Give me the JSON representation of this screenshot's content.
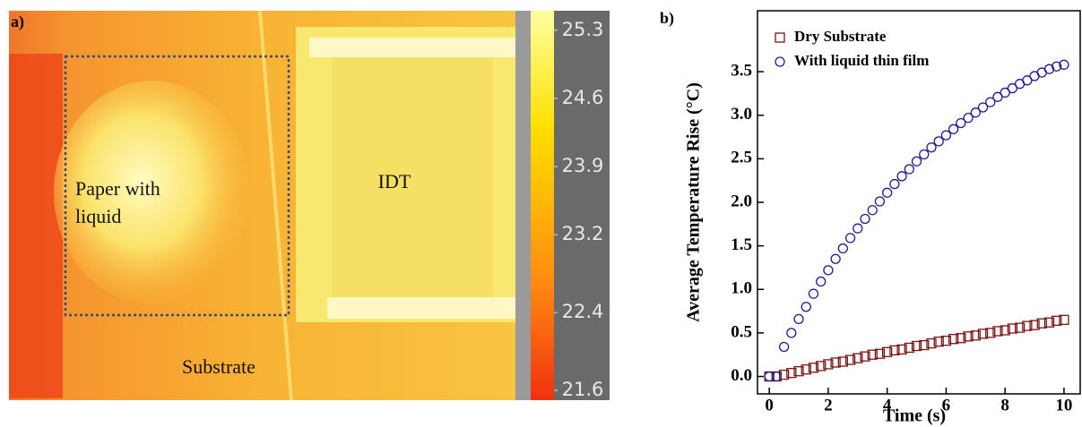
{
  "chart_data": [
    {
      "type": "thermal-image",
      "panel_label": "a)",
      "annotations": [
        "Paper with",
        "liquid",
        "IDT",
        "Substrate"
      ],
      "ylim": [
        21.5,
        25.5
      ],
      "yticks": [
        25.3,
        24.6,
        23.9,
        23.2,
        22.4,
        21.6
      ]
    },
    {
      "type": "scatter",
      "panel_label": "b)",
      "x_label": "Time (s)",
      "y_label": "Average Temperature Rise (°C)",
      "x": [
        0,
        0.25,
        0.5,
        0.75,
        1,
        1.25,
        1.5,
        1.75,
        2,
        2.25,
        2.5,
        2.75,
        3,
        3.25,
        3.5,
        3.75,
        4,
        4.25,
        4.5,
        4.75,
        5,
        5.25,
        5.5,
        5.75,
        6,
        6.25,
        6.5,
        6.75,
        7,
        7.25,
        7.5,
        7.75,
        8,
        8.25,
        8.5,
        8.75,
        9,
        9.25,
        9.5,
        9.75,
        10
      ],
      "series": [
        {
          "name": "Dry Substrate",
          "color": "#7a1414",
          "marker": "square",
          "values": [
            0,
            0,
            0.02,
            0.04,
            0.06,
            0.08,
            0.1,
            0.12,
            0.14,
            0.16,
            0.17,
            0.19,
            0.21,
            0.23,
            0.25,
            0.26,
            0.28,
            0.3,
            0.31,
            0.33,
            0.35,
            0.36,
            0.38,
            0.4,
            0.41,
            0.43,
            0.44,
            0.46,
            0.47,
            0.49,
            0.5,
            0.52,
            0.53,
            0.55,
            0.56,
            0.58,
            0.59,
            0.61,
            0.62,
            0.64,
            0.65
          ]
        },
        {
          "name": "With liquid thin film",
          "color": "#1c1c96",
          "marker": "circle",
          "values": [
            0,
            0,
            0.34,
            0.5,
            0.66,
            0.8,
            0.95,
            1.09,
            1.22,
            1.35,
            1.47,
            1.59,
            1.7,
            1.81,
            1.91,
            2.01,
            2.11,
            2.21,
            2.3,
            2.38,
            2.47,
            2.55,
            2.63,
            2.7,
            2.77,
            2.84,
            2.91,
            2.97,
            3.03,
            3.09,
            3.15,
            3.21,
            3.26,
            3.31,
            3.36,
            3.4,
            3.45,
            3.49,
            3.53,
            3.56,
            3.58
          ]
        }
      ],
      "xlim": [
        -0.4,
        10.55
      ],
      "xticks": [
        0,
        2,
        4,
        6,
        8,
        10
      ],
      "ylim": [
        -0.2,
        4.2
      ],
      "yticks": [
        {
          "value": 0,
          "label": "0.0"
        },
        0.5,
        {
          "value": 1,
          "label": "1.0"
        },
        1.5,
        {
          "value": 2,
          "label": "2.0"
        },
        2.5,
        {
          "value": 3,
          "label": "3.0"
        },
        3.5
      ],
      "legend": "upper-left"
    }
  ]
}
